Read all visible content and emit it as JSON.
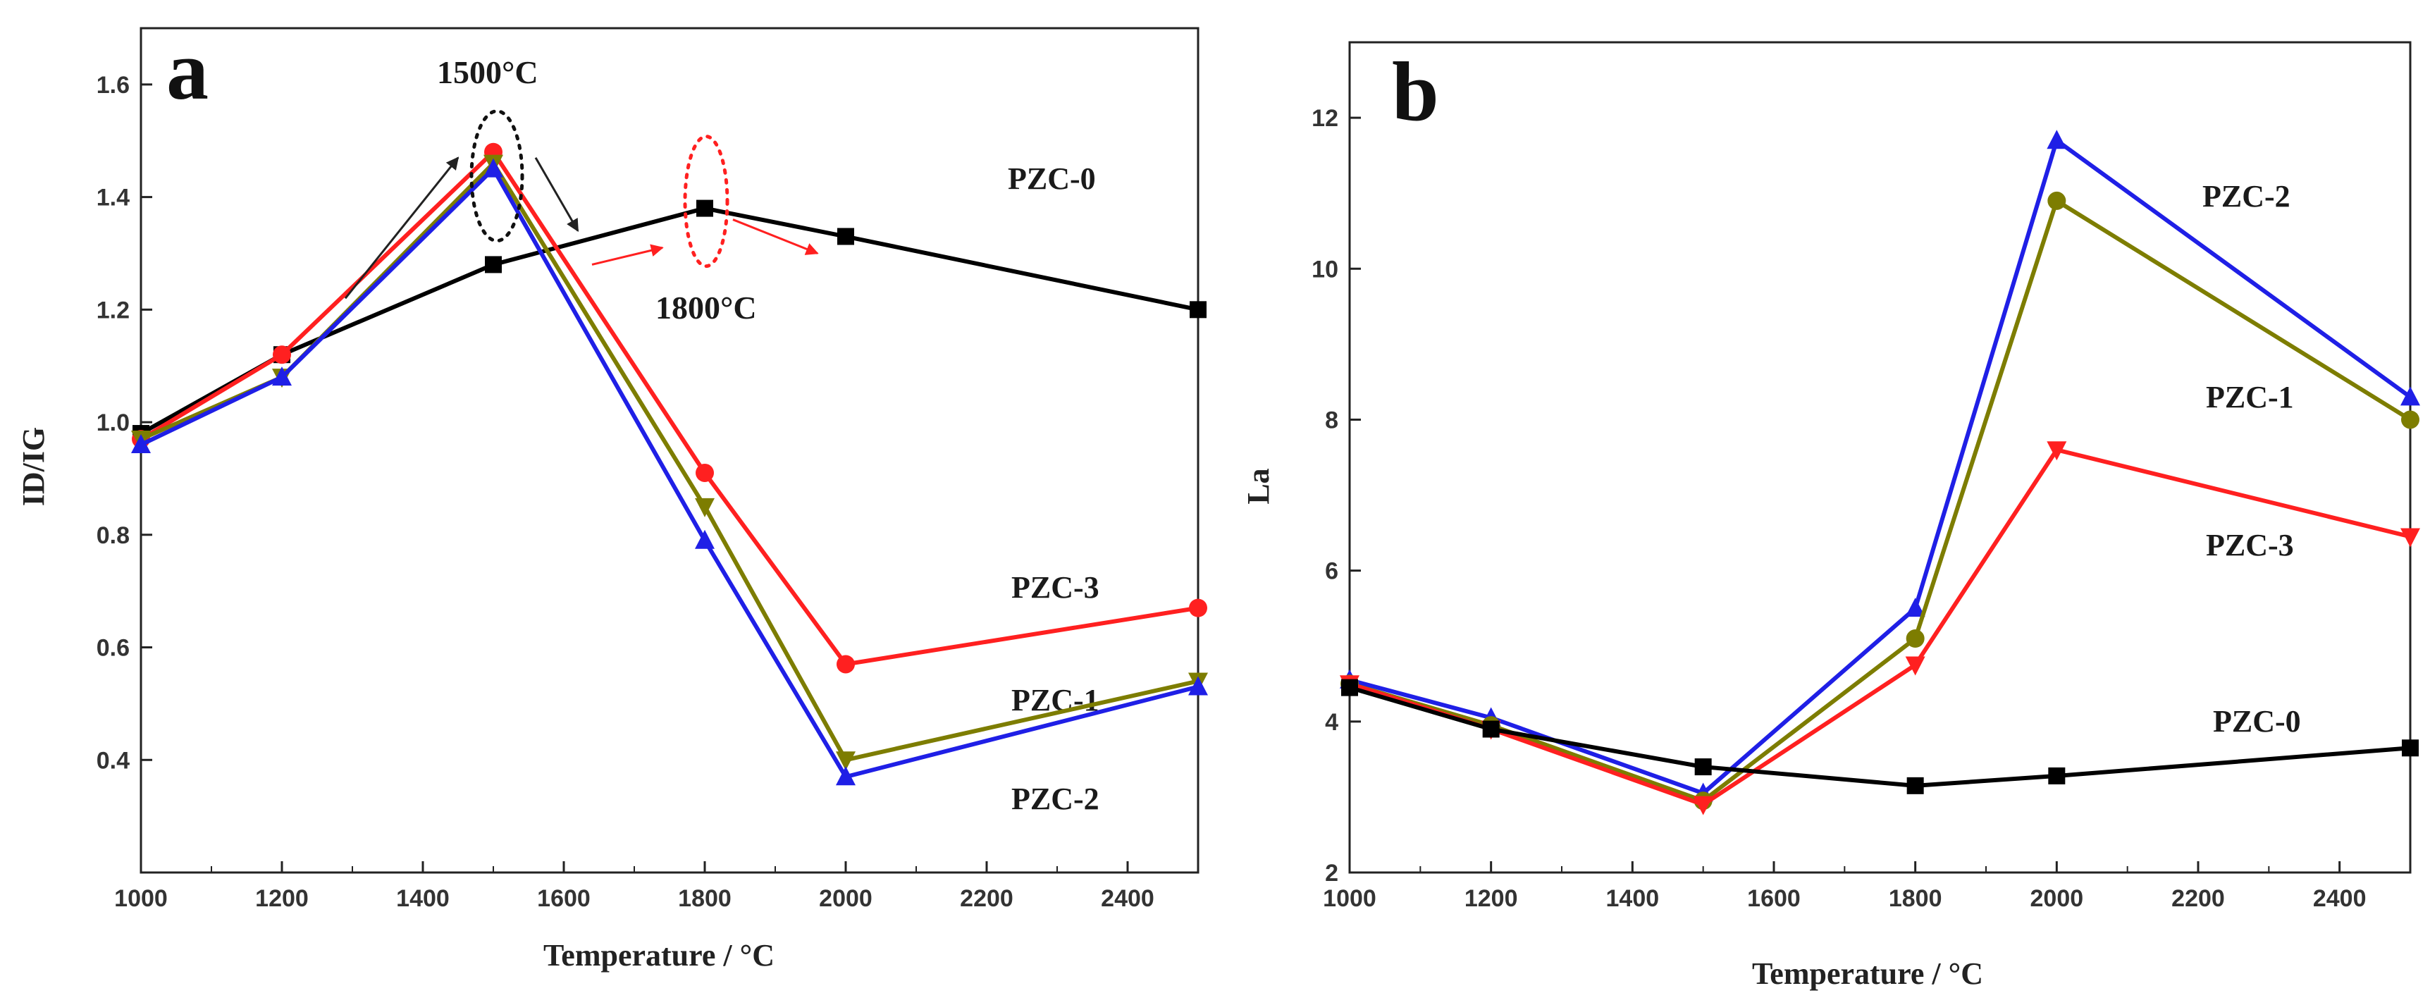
{
  "chart_data": [
    {
      "panel": "a",
      "type": "line",
      "xlabel": "Temperature / °C",
      "ylabel": "ID/IG",
      "xlim": [
        1000,
        2500
      ],
      "ylim": [
        0.2,
        1.7
      ],
      "xticks": [
        1000,
        1200,
        1400,
        1600,
        1800,
        2000,
        2200,
        2400
      ],
      "yticks": [
        0.4,
        0.6,
        0.8,
        1.0,
        1.2,
        1.4,
        1.6
      ],
      "x": [
        1000,
        1200,
        1500,
        1800,
        2000,
        2500
      ],
      "series": [
        {
          "name": "PZC-0",
          "color": "#000000",
          "marker": "square",
          "values": [
            0.98,
            1.12,
            1.28,
            1.38,
            1.33,
            1.2
          ]
        },
        {
          "name": "PZC-3",
          "color": "#ff2020",
          "marker": "circle",
          "values": [
            0.97,
            1.12,
            1.48,
            0.91,
            0.57,
            0.67
          ]
        },
        {
          "name": "PZC-1",
          "color": "#7d7d00",
          "marker": "triangle-down",
          "values": [
            0.97,
            1.08,
            1.46,
            0.85,
            0.4,
            0.54
          ]
        },
        {
          "name": "PZC-2",
          "color": "#1f1fe6",
          "marker": "triangle-up",
          "values": [
            0.96,
            1.08,
            1.45,
            0.79,
            0.37,
            0.53
          ]
        }
      ],
      "annotations": [
        {
          "text": "1500°C",
          "x": 1500,
          "y": 1.45
        },
        {
          "text": "1800°C",
          "x": 1800,
          "y": 1.38
        }
      ]
    },
    {
      "panel": "b",
      "type": "line",
      "xlabel": "Temperature / °C",
      "ylabel": "La",
      "xlim": [
        1000,
        2500
      ],
      "ylim": [
        2,
        13
      ],
      "xticks": [
        1000,
        1200,
        1400,
        1600,
        1800,
        2000,
        2200,
        2400
      ],
      "yticks": [
        2,
        4,
        6,
        8,
        10,
        12
      ],
      "x": [
        1000,
        1200,
        1500,
        1800,
        2000,
        2500
      ],
      "series": [
        {
          "name": "PZC-2",
          "color": "#1f1fe6",
          "marker": "triangle-up",
          "values": [
            4.55,
            4.05,
            3.05,
            5.5,
            11.7,
            8.3
          ]
        },
        {
          "name": "PZC-1",
          "color": "#7d7d00",
          "marker": "circle",
          "values": [
            4.5,
            3.95,
            2.95,
            5.1,
            10.9,
            8.0
          ]
        },
        {
          "name": "PZC-3",
          "color": "#ff2020",
          "marker": "triangle-down",
          "values": [
            4.5,
            3.9,
            2.9,
            4.75,
            7.6,
            6.45
          ]
        },
        {
          "name": "PZC-0",
          "color": "#000000",
          "marker": "square",
          "values": [
            4.45,
            3.9,
            3.4,
            3.15,
            3.28,
            3.65
          ]
        }
      ]
    }
  ]
}
